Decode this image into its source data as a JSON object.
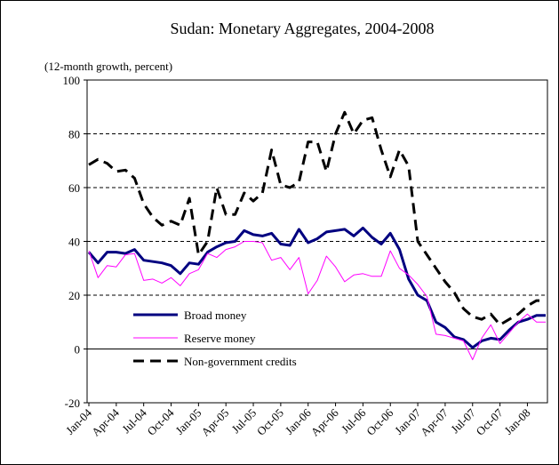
{
  "chart_data": {
    "type": "line",
    "title": "Sudan: Monetary Aggregates, 2004-2008",
    "subtitle": "(12-month growth, percent)",
    "categories": [
      "Jan-04",
      null,
      null,
      "Apr-04",
      null,
      null,
      "Jul-04",
      null,
      null,
      "Oct-04",
      null,
      null,
      "Jan-05",
      null,
      null,
      "Apr-05",
      null,
      null,
      "Jul-05",
      null,
      null,
      "Oct-05",
      null,
      null,
      "Jan-06",
      null,
      null,
      "Apr-06",
      null,
      null,
      "Jul-06",
      null,
      null,
      "Oct-06",
      null,
      null,
      "Jan-07",
      null,
      null,
      "Apr-07",
      null,
      null,
      "Jul-07",
      null,
      null,
      "Oct-07",
      null,
      null,
      "Jan-08",
      null,
      null
    ],
    "series": [
      {
        "name": "Broad money",
        "color": "#000080",
        "width": 3,
        "dash": "none",
        "values": [
          36,
          32,
          36,
          36,
          35.5,
          37,
          33,
          32.5,
          32,
          31,
          28,
          32,
          31.5,
          36,
          38,
          39.5,
          40,
          44,
          42.5,
          42,
          43,
          39,
          38.5,
          44.5,
          39.5,
          41,
          43.5,
          44,
          44.5,
          42,
          45,
          41.5,
          39,
          43,
          37,
          26,
          20,
          18,
          10,
          8,
          4.5,
          3.5,
          0.5,
          3,
          4,
          3.5,
          7,
          10,
          11,
          12.5,
          12.5
        ]
      },
      {
        "name": "Reserve money",
        "color": "#ff00ff",
        "width": 1,
        "dash": "none",
        "values": [
          36.5,
          26.5,
          31,
          30.5,
          35,
          35.5,
          25.5,
          26,
          24.5,
          26.5,
          23.5,
          28,
          29.5,
          35.5,
          34,
          37,
          38,
          40,
          40,
          39.5,
          33,
          34,
          29.5,
          34,
          20.5,
          25.5,
          34.5,
          30.5,
          25,
          27.5,
          28,
          27,
          27,
          36.5,
          30,
          27.5,
          24,
          19.5,
          5.5,
          5,
          4,
          3,
          -4,
          4,
          9,
          2,
          6,
          10,
          13,
          10,
          10
        ]
      },
      {
        "name": "Non-government credits",
        "color": "#000000",
        "width": 3,
        "dash": "12,7",
        "values": [
          68.5,
          70.5,
          69,
          66,
          66.5,
          63.5,
          54,
          49,
          46,
          47.5,
          46,
          56,
          35,
          40,
          60,
          50,
          50,
          58,
          55,
          58,
          74,
          61,
          60,
          62,
          77,
          77,
          66,
          80,
          88,
          80,
          85,
          86,
          74,
          64,
          74,
          68,
          40,
          35,
          30,
          25,
          21,
          15,
          12,
          11,
          13,
          9,
          11,
          13,
          16,
          18,
          18
        ]
      }
    ],
    "ylim": [
      -20,
      100
    ],
    "yticks": [
      -20,
      0,
      20,
      40,
      60,
      80,
      100
    ],
    "grid": true,
    "legend": "lower left"
  }
}
